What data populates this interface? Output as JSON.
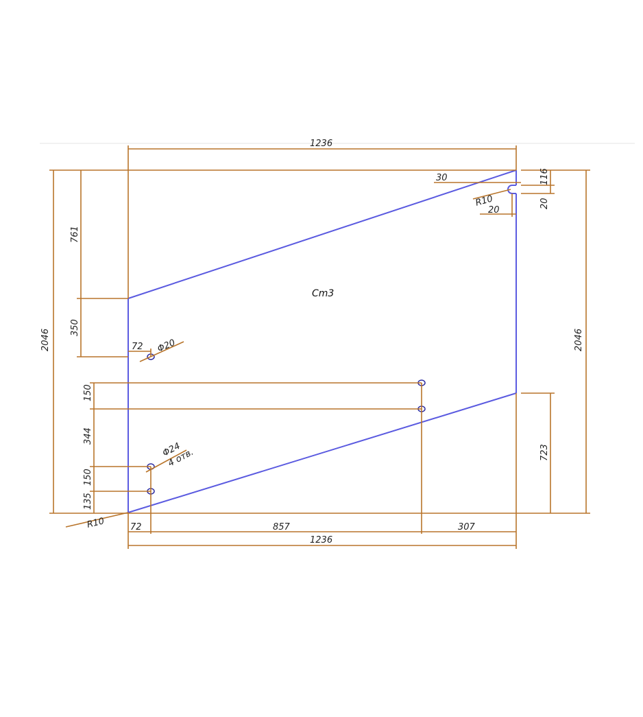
{
  "drawing": {
    "part_label": "Cm3",
    "colors": {
      "part": "#5a5ae0",
      "dimension": "#b8742a",
      "hole": "#2a2aa0",
      "text": "#222222"
    },
    "dimensions": {
      "top_width": "1236",
      "bottom_width": "1236",
      "left_height": "2046",
      "right_height": "2046",
      "left_upper": "761",
      "left_mid": "350",
      "hole_top_offset_72": "72",
      "hole_top_dia": "Φ20",
      "v150_top": "150",
      "v344": "344",
      "v150_bottom": "150",
      "v135": "135",
      "right_723": "723",
      "right_116": "116",
      "right_20": "20",
      "notch_30": "30",
      "notch_R10": "R10",
      "notch_20": "20",
      "corner_R10": "R10",
      "bottom_72": "72",
      "bottom_857": "857",
      "bottom_307": "307",
      "holes_dia": "Φ24",
      "holes_count": "4 отв."
    }
  }
}
